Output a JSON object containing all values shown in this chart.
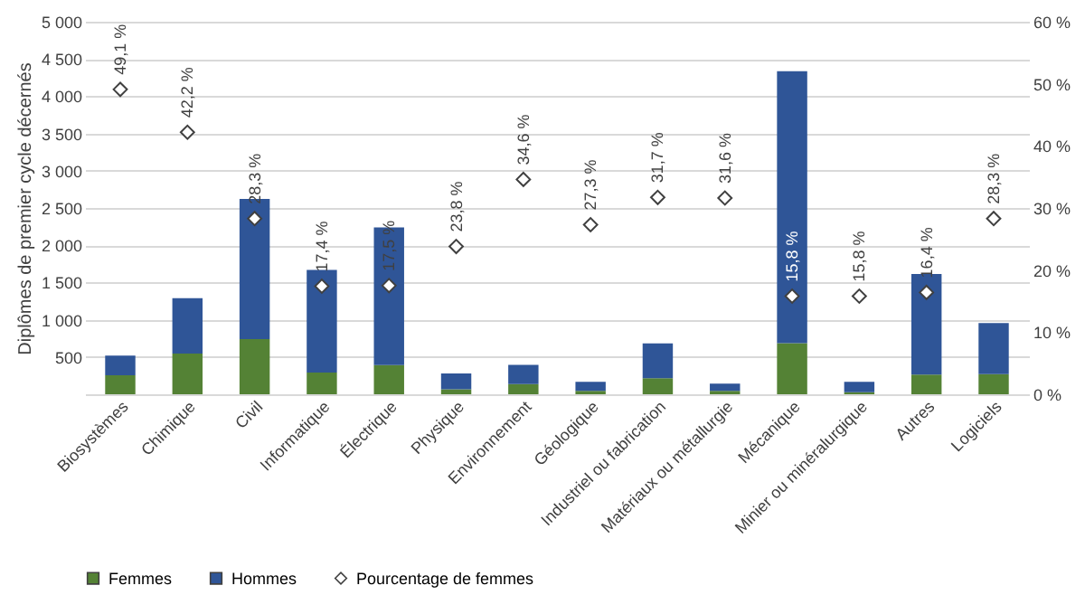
{
  "chart_data": {
    "type": "bar",
    "stacked": true,
    "ylabel": "Diplômes de premier cycle décernés",
    "categories": [
      "Biosystèmes",
      "Chimique",
      "Civil",
      "Informatique",
      "Électrique",
      "Physique",
      "Environnement",
      "Géologique",
      "Industriel ou fabrication",
      "Matériaux ou métallurgie",
      "Mécanique",
      "Minier ou minéralurgique",
      "Autres",
      "Logiciels"
    ],
    "series": [
      {
        "name": "Femmes",
        "color": "#548235",
        "values": [
          255,
          545,
          740,
          290,
          390,
          67,
          136,
          45,
          216,
          45,
          685,
          26,
          265,
          270
        ]
      },
      {
        "name": "Hommes",
        "color": "#2f5597",
        "values": [
          265,
          745,
          1880,
          1380,
          1850,
          213,
          258,
          122,
          466,
          99,
          3650,
          140,
          1350,
          685
        ]
      },
      {
        "name": "Pourcentage de femmes",
        "type": "scatter",
        "axis": "y2",
        "marker": "diamond",
        "color": "#ffffff",
        "values": [
          49.1,
          42.2,
          28.3,
          17.4,
          17.5,
          23.8,
          34.6,
          27.3,
          31.7,
          31.6,
          15.8,
          15.8,
          16.4,
          28.3
        ],
        "value_labels": [
          "49,1 %",
          "42,2 %",
          "28,3 %",
          "17,4 %",
          "17,5 %",
          "23,8 %",
          "34,6 %",
          "27,3 %",
          "31,7 %",
          "31,6 %",
          "15,8 %",
          "15,8 %",
          "16,4 %",
          "28,3 %"
        ]
      }
    ],
    "ylim": [
      0,
      5000
    ],
    "yticks": [
      500,
      {
        "value": 1000,
        "label": "1 000"
      },
      {
        "value": 1500,
        "label": "1 500"
      },
      {
        "value": 2000,
        "label": "2 000"
      },
      {
        "value": 2500,
        "label": "2 500"
      },
      {
        "value": 3000,
        "label": "3 000"
      },
      {
        "value": 3500,
        "label": "3 500"
      },
      {
        "value": 4000,
        "label": "4 000"
      },
      {
        "value": 4500,
        "label": "4 500"
      },
      {
        "value": 5000,
        "label": "5 000"
      }
    ],
    "y2lim": [
      0,
      60
    ],
    "y2ticks": [
      {
        "value": 0,
        "label": "0 %"
      },
      {
        "value": 10,
        "label": "10 %"
      },
      {
        "value": 20,
        "label": "20 %"
      },
      {
        "value": 30,
        "label": "30 %"
      },
      {
        "value": 40,
        "label": "40 %"
      },
      {
        "value": 50,
        "label": "50 %"
      },
      {
        "value": 60,
        "label": "60 %"
      }
    ],
    "grid": "y",
    "legend": "bottom"
  }
}
